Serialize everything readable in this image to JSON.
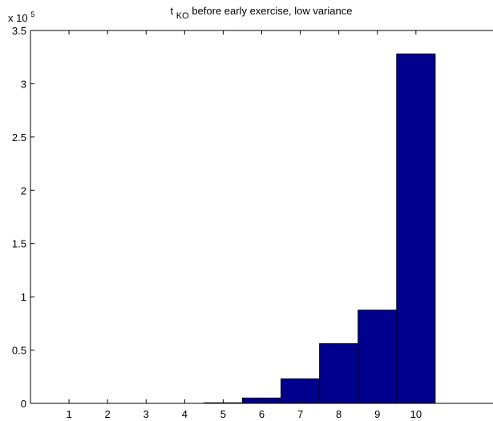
{
  "chart_data": {
    "type": "bar",
    "title_main": "t",
    "title_sub": "KO",
    "title_rest": " before early exercise, low variance",
    "xlabel": "",
    "ylabel": "",
    "multiplier_base": "x 10",
    "multiplier_exp": "5",
    "categories": [
      "1",
      "2",
      "3",
      "4",
      "5",
      "6",
      "7",
      "8",
      "9",
      "10"
    ],
    "values": [
      0,
      0,
      0,
      0,
      0.005,
      0.05,
      0.23,
      0.56,
      0.875,
      3.28
    ],
    "value_scale": 100000,
    "x_range": [
      0,
      12
    ],
    "ylim": [
      0,
      3.5
    ],
    "y_ticks": [
      0,
      0.5,
      1,
      1.5,
      2,
      2.5,
      3,
      3.5
    ],
    "y_tick_labels": [
      "0",
      "0.5",
      "1",
      "1.5",
      "2",
      "2.5",
      "3",
      "3.5"
    ],
    "bar_color": "#00008f",
    "bar_edge_color": "#000000",
    "grid": false,
    "legend": "none"
  }
}
